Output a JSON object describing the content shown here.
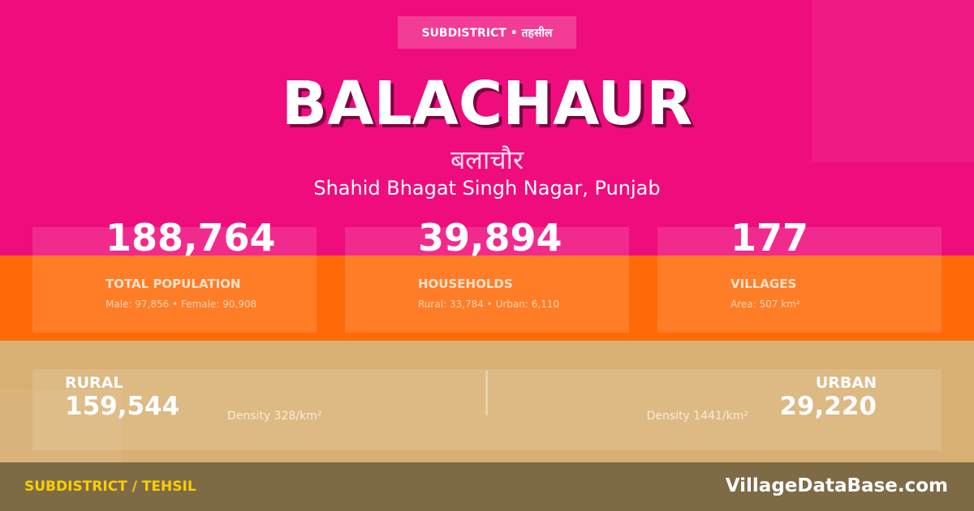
{
  "badge": "SUBDISTRICT • तहसील",
  "title": "BALACHAUR",
  "title_hindi": "बलाचौर",
  "location": "Shahid Bhagat Singh Nagar, Punjab",
  "stats": [
    {
      "value": "188,764",
      "label": "TOTAL POPULATION",
      "sub": "Male: 97,856 • Female: 90,908"
    },
    {
      "value": "39,894",
      "label": "HOUSEHOLDS",
      "sub": "Rural: 33,784 • Urban: 6,110"
    },
    {
      "value": "177",
      "label": "VILLAGES",
      "sub": "Area: 507 km²"
    }
  ],
  "rural": {
    "label": "RURAL",
    "value": "159,544",
    "density": "Density 328/km²"
  },
  "urban": {
    "label": "URBAN",
    "value": "29,220",
    "density": "Density 1441/km²"
  },
  "footer": {
    "left": "SUBDISTRICT / TEHSIL",
    "right": "VillageDataBase.com"
  },
  "colors": {
    "pink": "#ef0c7c",
    "orange": "#ff6a08",
    "tan": "#d9b073",
    "footer": "#7f6a46",
    "accent": "#f7d000"
  }
}
